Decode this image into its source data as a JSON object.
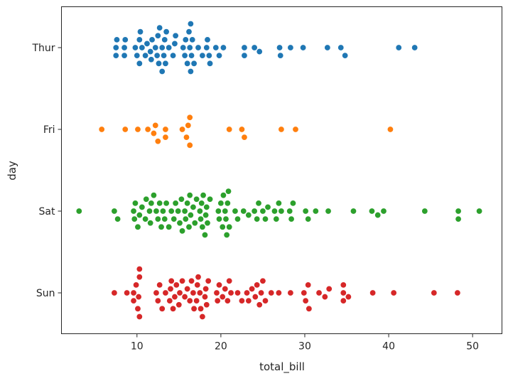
{
  "chart_data": {
    "type": "scatter",
    "subtype": "swarm",
    "title": "",
    "xlabel": "total_bill",
    "ylabel": "day",
    "xlim": [
      1.0,
      53.5
    ],
    "x_ticks": [
      10,
      20,
      30,
      40,
      50
    ],
    "categories": [
      "Thur",
      "Fri",
      "Sat",
      "Sun"
    ],
    "grid": false,
    "legend": "none",
    "series": [
      {
        "category": "Thur",
        "color": "#1f77b4",
        "values": [
          7.5,
          7.5,
          7.6,
          8.5,
          8.5,
          8.6,
          9.8,
          10.0,
          10.3,
          10.4,
          10.3,
          10.6,
          11.0,
          11.2,
          11.6,
          11.7,
          11.8,
          12.2,
          12.4,
          12.5,
          12.6,
          12.7,
          13.0,
          13.0,
          13.2,
          13.3,
          13.4,
          13.5,
          13.8,
          14.3,
          14.5,
          14.6,
          15.5,
          15.7,
          15.8,
          16.0,
          16.2,
          16.3,
          16.4,
          16.4,
          16.5,
          16.6,
          16.8,
          17.3,
          17.8,
          18.3,
          18.4,
          18.6,
          18.7,
          19.4,
          19.8,
          20.3,
          22.8,
          22.8,
          24.0,
          24.6,
          27.0,
          27.1,
          28.3,
          29.8,
          32.7,
          34.3,
          34.8,
          41.2,
          43.1
        ]
      },
      {
        "category": "Fri",
        "color": "#ff7f0e",
        "values": [
          5.8,
          8.6,
          10.1,
          11.3,
          12.0,
          12.2,
          12.5,
          13.4,
          13.4,
          15.4,
          15.9,
          16.1,
          16.3,
          16.3,
          21.0,
          22.5,
          22.8,
          27.2,
          28.9,
          40.2
        ]
      },
      {
        "category": "Sat",
        "color": "#2ca02c",
        "values": [
          3.1,
          7.3,
          7.7,
          9.6,
          9.7,
          9.8,
          10.1,
          10.3,
          10.6,
          11.0,
          11.1,
          11.5,
          11.6,
          11.7,
          12.0,
          12.3,
          12.5,
          12.7,
          12.9,
          13.1,
          13.3,
          13.5,
          13.8,
          14.1,
          14.4,
          14.6,
          14.9,
          15.1,
          15.3,
          15.4,
          15.7,
          15.8,
          16.0,
          16.2,
          16.3,
          16.4,
          16.7,
          16.9,
          17.1,
          17.5,
          17.6,
          17.7,
          17.8,
          17.9,
          18.1,
          18.2,
          18.3,
          18.4,
          18.7,
          19.7,
          19.8,
          20.0,
          20.2,
          20.3,
          20.5,
          20.6,
          20.7,
          20.8,
          20.9,
          21.0,
          21.7,
          22.0,
          22.7,
          23.3,
          24.0,
          24.3,
          24.5,
          25.0,
          25.3,
          25.6,
          26.4,
          26.6,
          26.9,
          27.2,
          28.2,
          28.4,
          28.6,
          30.1,
          30.4,
          31.3,
          32.8,
          35.8,
          38.0,
          38.7,
          39.4,
          44.3,
          48.3,
          48.3,
          50.8
        ]
      },
      {
        "category": "Sun",
        "color": "#d62728",
        "values": [
          7.3,
          8.8,
          9.6,
          9.6,
          9.9,
          10.1,
          10.2,
          10.3,
          10.3,
          10.3,
          12.3,
          12.5,
          12.7,
          13.0,
          13.4,
          13.9,
          14.0,
          14.1,
          14.3,
          14.5,
          14.7,
          15.0,
          15.1,
          15.4,
          15.7,
          16.0,
          16.3,
          16.5,
          16.7,
          16.8,
          17.1,
          17.2,
          17.3,
          17.5,
          17.6,
          17.8,
          18.1,
          18.2,
          18.3,
          18.5,
          19.5,
          19.6,
          19.8,
          20.2,
          20.5,
          20.8,
          21.0,
          21.2,
          22.0,
          22.5,
          23.1,
          23.3,
          23.7,
          24.1,
          24.3,
          24.6,
          24.8,
          25.0,
          25.3,
          26.0,
          26.9,
          28.3,
          29.9,
          30.1,
          30.4,
          30.5,
          31.7,
          32.4,
          32.9,
          34.6,
          34.6,
          34.6,
          35.2,
          38.1,
          40.6,
          45.4,
          48.2
        ]
      }
    ]
  }
}
